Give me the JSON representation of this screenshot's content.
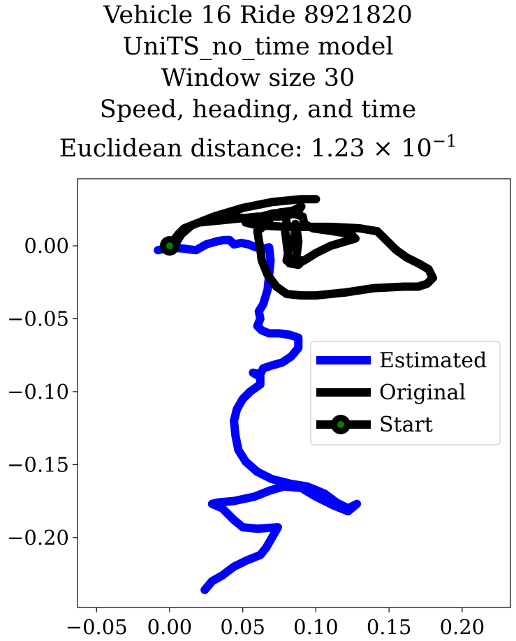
{
  "chart_data": {
    "type": "line",
    "title_lines": [
      "Vehicle 16 Ride 8921820",
      "UniTS_no_time model",
      "Window size 30",
      "Speed, heading, and time",
      "Euclidean distance: 1.23 × 10",
      "−1"
    ],
    "xlim": [
      -0.063,
      0.233
    ],
    "ylim": [
      -0.248,
      0.046
    ],
    "xticks": [
      -0.05,
      0.0,
      0.05,
      0.1,
      0.15,
      0.2
    ],
    "xtick_labels": [
      "−0.05",
      "0.00",
      "0.05",
      "0.10",
      "0.15",
      "0.20"
    ],
    "yticks": [
      0.0,
      -0.05,
      -0.1,
      -0.15,
      -0.2
    ],
    "ytick_labels": [
      "0.00",
      "−0.05",
      "−0.10",
      "−0.15",
      "−0.20"
    ],
    "grid": false,
    "legend_position": "center-right",
    "series": [
      {
        "name": "Estimated",
        "color": "#0000ff",
        "points": [
          [
            -0.008,
            -0.003
          ],
          [
            0.0,
            -0.001
          ],
          [
            0.01,
            -0.002
          ],
          [
            0.018,
            -0.003
          ],
          [
            0.025,
            0.001
          ],
          [
            0.032,
            0.003
          ],
          [
            0.037,
            0.004
          ],
          [
            0.041,
            0.004
          ],
          [
            0.044,
            0.001
          ],
          [
            0.049,
            0.002
          ],
          [
            0.054,
            0.001
          ],
          [
            0.059,
            -0.001
          ],
          [
            0.064,
            -0.002
          ],
          [
            0.068,
            -0.001
          ],
          [
            0.069,
            -0.01
          ],
          [
            0.068,
            -0.02
          ],
          [
            0.067,
            -0.03
          ],
          [
            0.064,
            -0.04
          ],
          [
            0.061,
            -0.045
          ],
          [
            0.062,
            -0.05
          ],
          [
            0.06,
            -0.055
          ],
          [
            0.063,
            -0.058
          ],
          [
            0.068,
            -0.06
          ],
          [
            0.075,
            -0.06
          ],
          [
            0.082,
            -0.061
          ],
          [
            0.088,
            -0.063
          ],
          [
            0.088,
            -0.07
          ],
          [
            0.083,
            -0.076
          ],
          [
            0.077,
            -0.08
          ],
          [
            0.07,
            -0.082
          ],
          [
            0.064,
            -0.084
          ],
          [
            0.062,
            -0.088
          ],
          [
            0.057,
            -0.087
          ],
          [
            0.062,
            -0.09
          ],
          [
            0.062,
            -0.095
          ],
          [
            0.055,
            -0.1
          ],
          [
            0.05,
            -0.105
          ],
          [
            0.046,
            -0.112
          ],
          [
            0.044,
            -0.12
          ],
          [
            0.045,
            -0.13
          ],
          [
            0.047,
            -0.14
          ],
          [
            0.052,
            -0.148
          ],
          [
            0.06,
            -0.155
          ],
          [
            0.07,
            -0.16
          ],
          [
            0.082,
            -0.163
          ],
          [
            0.094,
            -0.165
          ],
          [
            0.106,
            -0.17
          ],
          [
            0.114,
            -0.176
          ],
          [
            0.122,
            -0.18
          ],
          [
            0.128,
            -0.177
          ],
          [
            0.122,
            -0.182
          ],
          [
            0.112,
            -0.178
          ],
          [
            0.1,
            -0.172
          ],
          [
            0.09,
            -0.166
          ],
          [
            0.078,
            -0.165
          ],
          [
            0.068,
            -0.168
          ],
          [
            0.058,
            -0.172
          ],
          [
            0.044,
            -0.175
          ],
          [
            0.033,
            -0.176
          ],
          [
            0.029,
            -0.177
          ],
          [
            0.036,
            -0.18
          ],
          [
            0.04,
            -0.184
          ],
          [
            0.044,
            -0.188
          ],
          [
            0.05,
            -0.193
          ],
          [
            0.06,
            -0.194
          ],
          [
            0.074,
            -0.193
          ],
          [
            0.07,
            -0.2
          ],
          [
            0.066,
            -0.207
          ],
          [
            0.062,
            -0.212
          ],
          [
            0.052,
            -0.216
          ],
          [
            0.044,
            -0.22
          ],
          [
            0.036,
            -0.226
          ],
          [
            0.029,
            -0.23
          ],
          [
            0.024,
            -0.236
          ]
        ]
      },
      {
        "name": "Original",
        "color": "#000000",
        "points": [
          [
            0.0,
            0.0
          ],
          [
            0.006,
            0.008
          ],
          [
            0.01,
            0.012
          ],
          [
            0.02,
            0.016
          ],
          [
            0.04,
            0.018
          ],
          [
            0.06,
            0.02
          ],
          [
            0.075,
            0.02
          ],
          [
            0.085,
            0.022
          ],
          [
            0.091,
            0.02
          ],
          [
            0.092,
            0.015
          ],
          [
            0.098,
            0.012
          ],
          [
            0.112,
            0.01
          ],
          [
            0.124,
            0.008
          ],
          [
            0.127,
            0.005
          ],
          [
            0.12,
            0.003
          ],
          [
            0.11,
            0.0
          ],
          [
            0.1,
            -0.005
          ],
          [
            0.092,
            -0.01
          ],
          [
            0.086,
            -0.012
          ],
          [
            0.087,
            -0.005
          ],
          [
            0.088,
            0.003
          ],
          [
            0.087,
            0.01
          ],
          [
            0.086,
            0.015
          ],
          [
            0.085,
            0.004
          ],
          [
            0.082,
            0.0
          ],
          [
            0.08,
            -0.01
          ],
          [
            0.083,
            -0.012
          ],
          [
            0.087,
            -0.01
          ],
          [
            0.091,
            -0.01
          ],
          [
            0.088,
            -0.013
          ],
          [
            0.082,
            -0.012
          ],
          [
            0.081,
            -0.006
          ],
          [
            0.08,
            0.002
          ],
          [
            0.079,
            0.01
          ],
          [
            0.08,
            0.016
          ],
          [
            0.079,
            0.022
          ],
          [
            0.076,
            0.023
          ],
          [
            0.07,
            0.02
          ],
          [
            0.065,
            0.014
          ],
          [
            0.06,
            0.01
          ],
          [
            0.061,
            0.004
          ],
          [
            0.062,
            -0.002
          ],
          [
            0.063,
            -0.01
          ],
          [
            0.067,
            -0.02
          ],
          [
            0.073,
            -0.028
          ],
          [
            0.08,
            -0.033
          ],
          [
            0.09,
            -0.034
          ],
          [
            0.1,
            -0.034
          ],
          [
            0.12,
            -0.032
          ],
          [
            0.14,
            -0.029
          ],
          [
            0.16,
            -0.028
          ],
          [
            0.17,
            -0.028
          ],
          [
            0.176,
            -0.026
          ],
          [
            0.18,
            -0.022
          ],
          [
            0.177,
            -0.016
          ],
          [
            0.17,
            -0.012
          ],
          [
            0.162,
            -0.008
          ],
          [
            0.155,
            -0.003
          ],
          [
            0.148,
            0.004
          ],
          [
            0.142,
            0.01
          ],
          [
            0.13,
            0.012
          ],
          [
            0.11,
            0.013
          ],
          [
            0.1,
            0.013
          ],
          [
            0.08,
            0.013
          ],
          [
            0.06,
            0.014
          ],
          [
            0.052,
            0.016
          ],
          [
            0.055,
            0.018
          ],
          [
            0.07,
            0.022
          ],
          [
            0.084,
            0.024
          ],
          [
            0.09,
            0.027
          ],
          [
            0.088,
            0.024
          ],
          [
            0.08,
            0.023
          ],
          [
            0.07,
            0.021
          ],
          [
            0.055,
            0.018
          ],
          [
            0.045,
            0.02
          ],
          [
            0.04,
            0.022
          ],
          [
            0.05,
            0.026
          ],
          [
            0.07,
            0.03
          ],
          [
            0.09,
            0.032
          ],
          [
            0.1,
            0.032
          ],
          [
            0.09,
            0.032
          ],
          [
            0.07,
            0.03
          ],
          [
            0.05,
            0.026
          ],
          [
            0.03,
            0.02
          ],
          [
            0.015,
            0.014
          ],
          [
            0.008,
            0.008
          ],
          [
            0.005,
            0.003
          ],
          [
            0.003,
            0.001
          ],
          [
            0.0,
            0.0
          ]
        ]
      }
    ],
    "start_point": {
      "name": "Start",
      "x": 0.0,
      "y": 0.0,
      "ring_color": "#000000",
      "center_color": "#008000"
    }
  }
}
